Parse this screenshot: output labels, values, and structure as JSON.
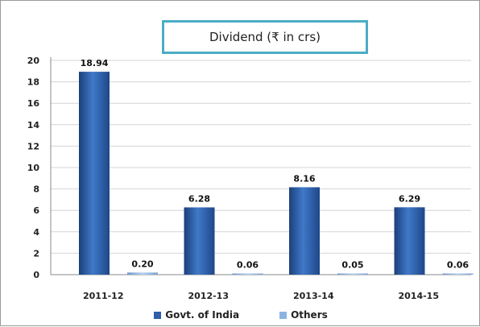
{
  "chart_data": {
    "type": "bar",
    "title": "Dividend (₹ in crs)",
    "categories": [
      "2011-12",
      "2012-13",
      "2013-14",
      "2014-15"
    ],
    "series": [
      {
        "name": "Govt. of India",
        "values": [
          18.94,
          6.28,
          8.16,
          6.29
        ],
        "color": "#2e5fa8"
      },
      {
        "name": "Others",
        "values": [
          0.2,
          0.06,
          0.05,
          0.06
        ],
        "color": "#8db3e2"
      }
    ],
    "data_labels": {
      "Govt. of India": [
        "18.94",
        "6.28",
        "8.16",
        "6.29"
      ],
      "Others": [
        "0.20",
        "0.06",
        "0.05",
        "0.06"
      ]
    },
    "ylim": [
      0,
      20
    ],
    "yticks": [
      0,
      2,
      4,
      6,
      8,
      10,
      12,
      14,
      16,
      18,
      20
    ],
    "grid": true,
    "legend": "bottom"
  }
}
